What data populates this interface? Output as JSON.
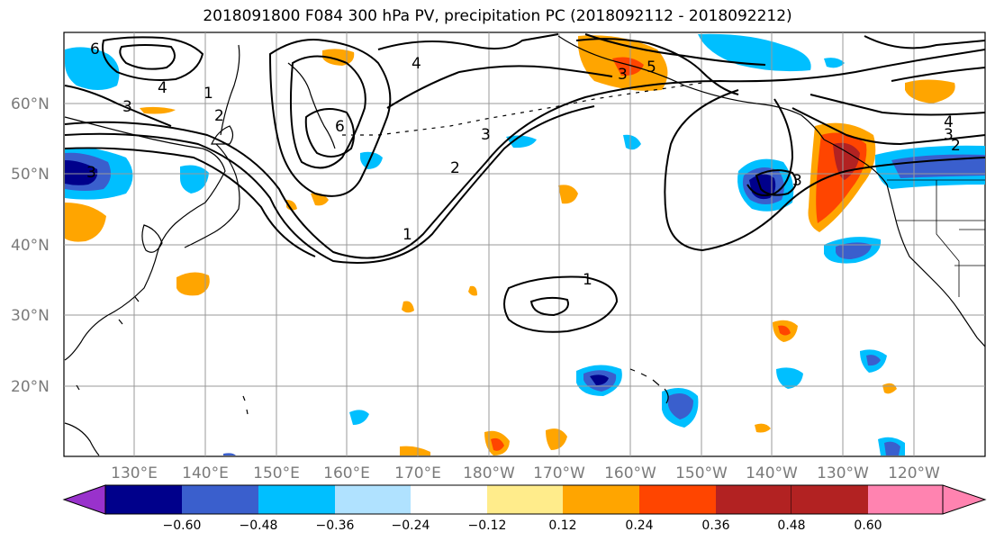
{
  "title": "2018091800 F084 300 hPa PV, precipitation PC (2018092112 - 2018092212)",
  "lat_labels": [
    "60°N",
    "50°N",
    "40°N",
    "30°N",
    "20°N"
  ],
  "lon_labels": [
    "130°E",
    "140°E",
    "150°E",
    "160°E",
    "170°E",
    "180°W",
    "170°W",
    "160°W",
    "150°W",
    "140°W",
    "130°W",
    "120°W"
  ],
  "colorbar": {
    "tick_labels": [
      "−0.60",
      "−0.48",
      "−0.36",
      "−0.24",
      "−0.12",
      "0.12",
      "0.24",
      "0.36",
      "0.48",
      "0.60"
    ],
    "colors": [
      "#9932cc",
      "#00008b",
      "#3a5fcd",
      "#00bfff",
      "#b0e2ff",
      "#ffffff",
      "#ffec8b",
      "#ffa500",
      "#ff4500",
      "#b22222",
      "#ff83b0"
    ]
  },
  "contour_labels": [
    {
      "text": "6"
    },
    {
      "text": "4"
    },
    {
      "text": "3"
    },
    {
      "text": "2"
    },
    {
      "text": "1"
    },
    {
      "text": "6"
    },
    {
      "text": "4"
    },
    {
      "text": "3"
    },
    {
      "text": "1"
    },
    {
      "text": "3"
    },
    {
      "text": "2"
    },
    {
      "text": "1"
    },
    {
      "text": "4"
    },
    {
      "text": "3"
    },
    {
      "text": "2"
    },
    {
      "text": "3"
    },
    {
      "text": "5"
    },
    {
      "text": "3"
    }
  ],
  "colors": {
    "contour": "#000000",
    "grid": "#999999",
    "coast": "#000000"
  }
}
